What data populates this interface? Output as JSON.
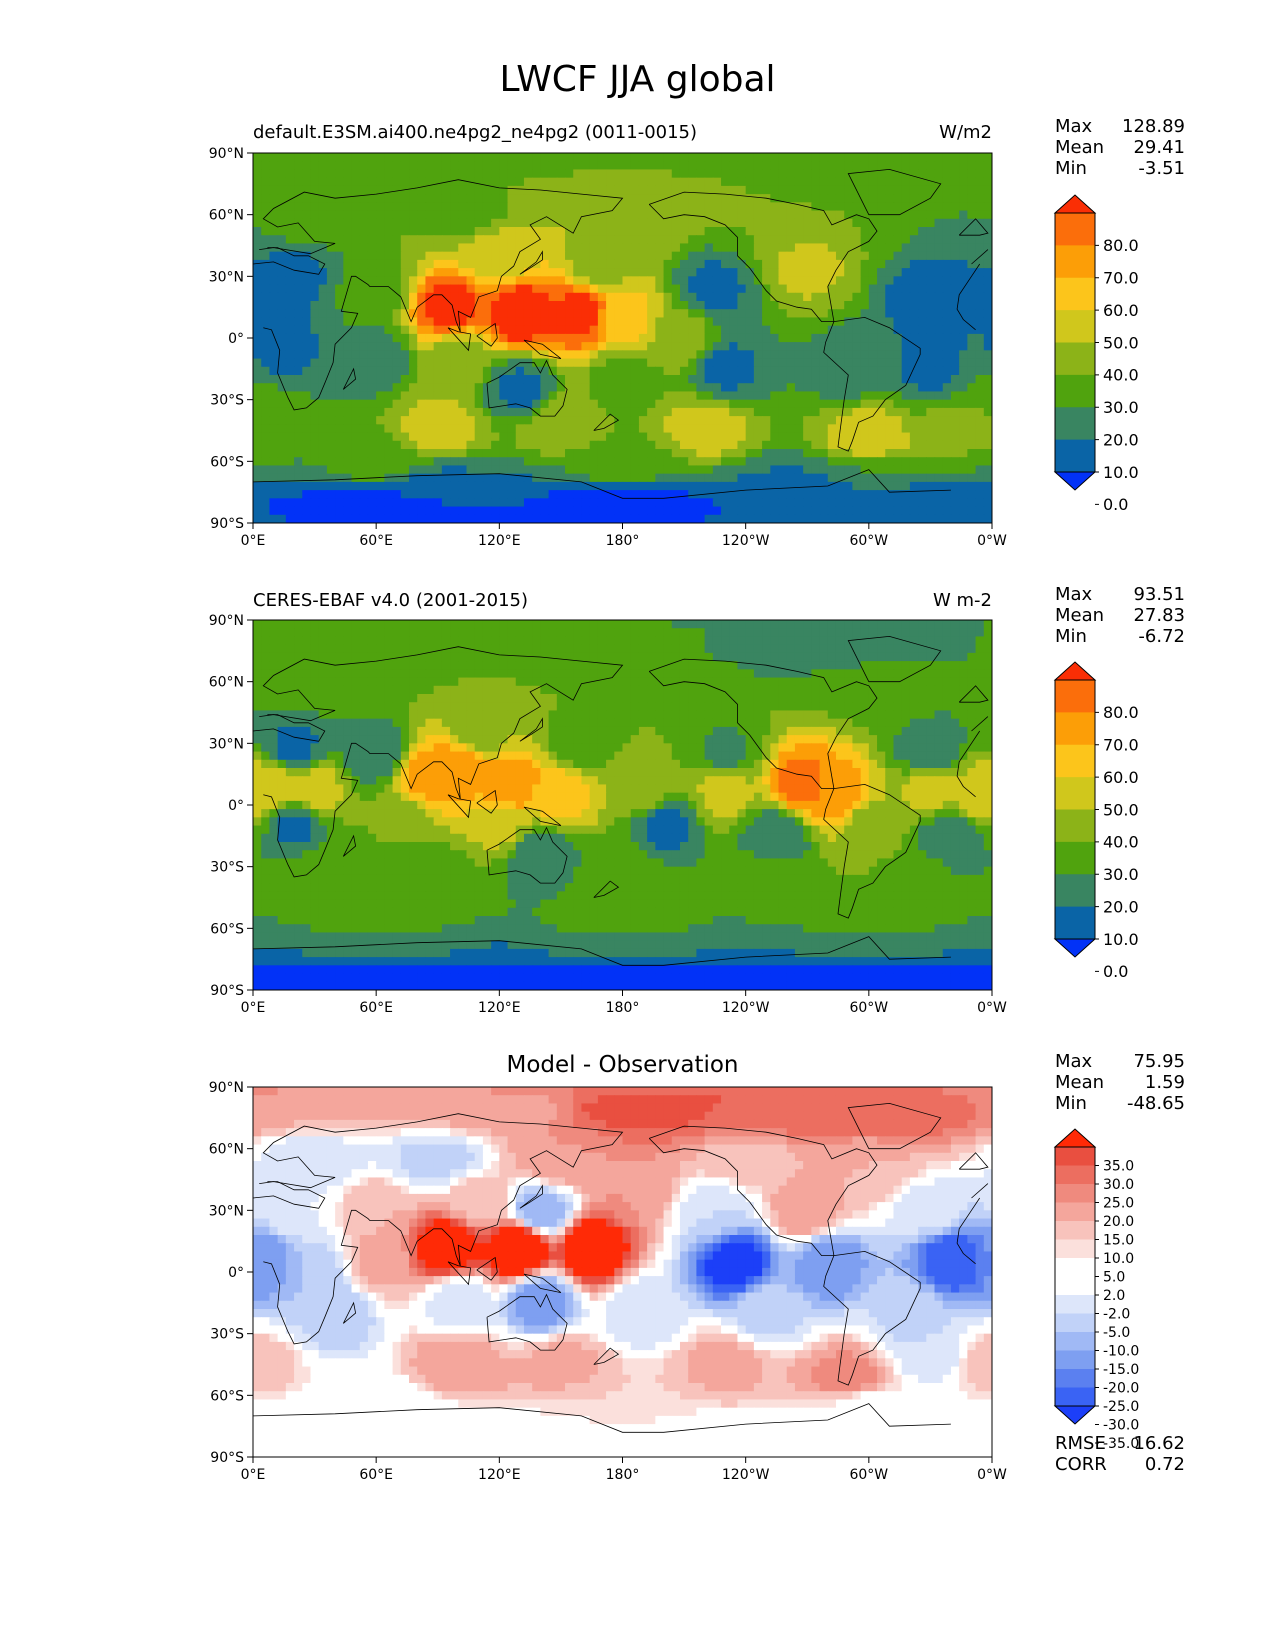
{
  "figure_title": "LWCF JJA global",
  "colors": {
    "abs_levels": [
      "#0232f7",
      "#0a64a6",
      "#398561",
      "#50a30e",
      "#8cb318",
      "#d0c71c",
      "#fcc51b",
      "#fc9e07",
      "#fb6e0b",
      "#fa2e05"
    ],
    "diff_levels": [
      "#1c3ff8",
      "#3a63f4",
      "#5b80f0",
      "#7e9ff1",
      "#a0b9f5",
      "#c1d2f8",
      "#dde6fa",
      "#ffffff",
      "#ffffff",
      "#fbe0dc",
      "#f8c3bc",
      "#f4a69c",
      "#ef8a7e",
      "#ec6e60",
      "#e94f40",
      "#ff2a06"
    ],
    "coast": "#000000"
  },
  "panels": [
    {
      "left_title": "default.E3SM.ai400.ne4pg2_ne4pg2 (0011-0015)",
      "right_title": "W/m2",
      "center_title": "",
      "stats": {
        "max_label": "Max",
        "max": "128.89",
        "mean_label": "Mean",
        "mean": "29.41",
        "min_label": "Min",
        "min": "-3.51"
      },
      "colorbar_ticks": [
        "80.0",
        "70.0",
        "60.0",
        "50.0",
        "40.0",
        "30.0",
        "20.0",
        "10.0",
        "0.0"
      ]
    },
    {
      "left_title": "CERES-EBAF v4.0 (2001-2015)",
      "right_title": "W m-2",
      "center_title": "",
      "stats": {
        "max_label": "Max",
        "max": "93.51",
        "mean_label": "Mean",
        "mean": "27.83",
        "min_label": "Min",
        "min": "-6.72"
      },
      "colorbar_ticks": [
        "80.0",
        "70.0",
        "60.0",
        "50.0",
        "40.0",
        "30.0",
        "20.0",
        "10.0",
        "0.0"
      ]
    },
    {
      "left_title": "",
      "right_title": "",
      "center_title": "Model - Observation",
      "stats": {
        "max_label": "Max",
        "max": "75.95",
        "mean_label": "Mean",
        "mean": "1.59",
        "min_label": "Min",
        "min": "-48.65"
      },
      "colorbar_ticks": [
        "35.0",
        "30.0",
        "25.0",
        "20.0",
        "15.0",
        "10.0",
        "5.0",
        "2.0",
        "-2.0",
        "-5.0",
        "-10.0",
        "-15.0",
        "-20.0",
        "-25.0",
        "-30.0",
        "-35.0"
      ],
      "extra_stats": {
        "rmse_label": "RMSE",
        "rmse": "16.62",
        "corr_label": "CORR",
        "corr": "0.72"
      }
    }
  ],
  "axes": {
    "lat_ticks": [
      "90°N",
      "60°N",
      "30°N",
      "0°",
      "30°S",
      "60°S",
      "90°S"
    ],
    "lon_ticks": [
      "0°E",
      "60°E",
      "120°E",
      "180°",
      "120°W",
      "60°W",
      "0°W"
    ]
  },
  "chart_data": [
    {
      "type": "heatmap",
      "title": "default.E3SM.ai400.ne4pg2_ne4pg2 (0011-0015)",
      "units": "W/m2",
      "x_range": [
        0,
        360
      ],
      "y_range": [
        -90,
        90
      ],
      "levels": [
        0,
        10,
        20,
        30,
        40,
        50,
        60,
        70,
        80
      ],
      "max": 128.89,
      "mean": 29.41,
      "min": -3.51,
      "blobs": [
        {
          "lon": 0,
          "lat": 85,
          "v": 20
        },
        {
          "lon": 30,
          "lat": 60,
          "v": 25
        },
        {
          "lon": 100,
          "lat": 60,
          "v": 28
        },
        {
          "lon": 180,
          "lat": 60,
          "v": 40
        },
        {
          "lon": 250,
          "lat": 60,
          "v": 30
        },
        {
          "lon": 300,
          "lat": 60,
          "v": 30
        },
        {
          "lon": 20,
          "lat": 30,
          "v": 8
        },
        {
          "lon": 60,
          "lat": 25,
          "v": 25
        },
        {
          "lon": 120,
          "lat": 40,
          "v": 45
        },
        {
          "lon": 170,
          "lat": 35,
          "v": 35
        },
        {
          "lon": 225,
          "lat": 25,
          "v": 8
        },
        {
          "lon": 270,
          "lat": 35,
          "v": 42
        },
        {
          "lon": 330,
          "lat": 20,
          "v": 5
        },
        {
          "lon": 340,
          "lat": 40,
          "v": 10
        },
        {
          "lon": 95,
          "lat": 15,
          "v": 85
        },
        {
          "lon": 130,
          "lat": 12,
          "v": 90
        },
        {
          "lon": 160,
          "lat": 12,
          "v": 85
        },
        {
          "lon": 180,
          "lat": 10,
          "v": 55
        },
        {
          "lon": 210,
          "lat": 0,
          "v": 35
        },
        {
          "lon": 15,
          "lat": -5,
          "v": 8
        },
        {
          "lon": 60,
          "lat": -10,
          "v": 15
        },
        {
          "lon": 100,
          "lat": -10,
          "v": 35
        },
        {
          "lon": 130,
          "lat": -25,
          "v": 8
        },
        {
          "lon": 180,
          "lat": -20,
          "v": 25
        },
        {
          "lon": 230,
          "lat": -15,
          "v": 8
        },
        {
          "lon": 290,
          "lat": -15,
          "v": 15
        },
        {
          "lon": 330,
          "lat": -15,
          "v": 8
        },
        {
          "lon": 0,
          "lat": -40,
          "v": 30
        },
        {
          "lon": 90,
          "lat": -45,
          "v": 45
        },
        {
          "lon": 150,
          "lat": -42,
          "v": 38
        },
        {
          "lon": 220,
          "lat": -45,
          "v": 45
        },
        {
          "lon": 300,
          "lat": -50,
          "v": 50
        },
        {
          "lon": 340,
          "lat": -45,
          "v": 32
        },
        {
          "lon": 60,
          "lat": -62,
          "v": 25
        },
        {
          "lon": 180,
          "lat": -62,
          "v": 25
        },
        {
          "lon": 300,
          "lat": -65,
          "v": 20
        },
        {
          "lon": 60,
          "lat": -80,
          "v": -2
        },
        {
          "lon": 180,
          "lat": -80,
          "v": -2
        },
        {
          "lon": 300,
          "lat": -80,
          "v": 2
        },
        {
          "lon": 90,
          "lat": -72,
          "v": 8
        },
        {
          "lon": 270,
          "lat": -72,
          "v": 8
        }
      ]
    },
    {
      "type": "heatmap",
      "title": "CERES-EBAF v4.0 (2001-2015)",
      "units": "W m-2",
      "x_range": [
        0,
        360
      ],
      "y_range": [
        -90,
        90
      ],
      "levels": [
        0,
        10,
        20,
        30,
        40,
        50,
        60,
        70,
        80
      ],
      "max": 93.51,
      "mean": 27.83,
      "min": -6.72,
      "blobs": [
        {
          "lon": 0,
          "lat": 80,
          "v": 20
        },
        {
          "lon": 60,
          "lat": 80,
          "v": 25
        },
        {
          "lon": 180,
          "lat": 80,
          "v": 22
        },
        {
          "lon": 280,
          "lat": 80,
          "v": 12
        },
        {
          "lon": 40,
          "lat": 60,
          "v": 25
        },
        {
          "lon": 120,
          "lat": 60,
          "v": 30
        },
        {
          "lon": 200,
          "lat": 55,
          "v": 30
        },
        {
          "lon": 300,
          "lat": 55,
          "v": 28
        },
        {
          "lon": 20,
          "lat": 28,
          "v": 8
        },
        {
          "lon": 60,
          "lat": 25,
          "v": 12
        },
        {
          "lon": 110,
          "lat": 35,
          "v": 35
        },
        {
          "lon": 160,
          "lat": 30,
          "v": 25
        },
        {
          "lon": 230,
          "lat": 25,
          "v": 18
        },
        {
          "lon": 330,
          "lat": 25,
          "v": 12
        },
        {
          "lon": 10,
          "lat": 8,
          "v": 50
        },
        {
          "lon": 30,
          "lat": 8,
          "v": 45
        },
        {
          "lon": 85,
          "lat": 15,
          "v": 65
        },
        {
          "lon": 100,
          "lat": 18,
          "v": 70
        },
        {
          "lon": 125,
          "lat": 10,
          "v": 70
        },
        {
          "lon": 150,
          "lat": 5,
          "v": 55
        },
        {
          "lon": 190,
          "lat": 8,
          "v": 40
        },
        {
          "lon": 230,
          "lat": 8,
          "v": 45
        },
        {
          "lon": 268,
          "lat": 10,
          "v": 75
        },
        {
          "lon": 285,
          "lat": 5,
          "v": 65
        },
        {
          "lon": 330,
          "lat": 8,
          "v": 45
        },
        {
          "lon": 355,
          "lat": 5,
          "v": 50
        },
        {
          "lon": 20,
          "lat": -10,
          "v": 8
        },
        {
          "lon": 70,
          "lat": -8,
          "v": 30
        },
        {
          "lon": 120,
          "lat": -10,
          "v": 42
        },
        {
          "lon": 140,
          "lat": -25,
          "v": 10
        },
        {
          "lon": 200,
          "lat": -10,
          "v": 8
        },
        {
          "lon": 255,
          "lat": -15,
          "v": 10
        },
        {
          "lon": 300,
          "lat": -10,
          "v": 35
        },
        {
          "lon": 340,
          "lat": -15,
          "v": 10
        },
        {
          "lon": 30,
          "lat": -35,
          "v": 25
        },
        {
          "lon": 90,
          "lat": -35,
          "v": 25
        },
        {
          "lon": 180,
          "lat": -35,
          "v": 28
        },
        {
          "lon": 250,
          "lat": -35,
          "v": 25
        },
        {
          "lon": 320,
          "lat": -35,
          "v": 28
        },
        {
          "lon": 60,
          "lat": -55,
          "v": 30
        },
        {
          "lon": 180,
          "lat": -55,
          "v": 30
        },
        {
          "lon": 300,
          "lat": -55,
          "v": 30
        },
        {
          "lon": 60,
          "lat": -70,
          "v": 18
        },
        {
          "lon": 180,
          "lat": -70,
          "v": 18
        },
        {
          "lon": 300,
          "lat": -70,
          "v": 18
        },
        {
          "lon": 60,
          "lat": -82,
          "v": -3
        },
        {
          "lon": 180,
          "lat": -82,
          "v": -3
        },
        {
          "lon": 300,
          "lat": -82,
          "v": -3
        }
      ]
    },
    {
      "type": "heatmap",
      "title": "Model - Observation",
      "x_range": [
        0,
        360
      ],
      "y_range": [
        -90,
        90
      ],
      "levels": [
        -35,
        -30,
        -25,
        -20,
        -15,
        -10,
        -5,
        -2,
        2,
        5,
        10,
        15,
        20,
        25,
        30,
        35
      ],
      "max": 75.95,
      "mean": 1.59,
      "min": -48.65,
      "rmse": 16.62,
      "corr": 0.72,
      "blobs": [
        {
          "lon": 30,
          "lat": 80,
          "v": 10
        },
        {
          "lon": 120,
          "lat": 80,
          "v": 12
        },
        {
          "lon": 190,
          "lat": 80,
          "v": 28
        },
        {
          "lon": 250,
          "lat": 78,
          "v": 22
        },
        {
          "lon": 320,
          "lat": 80,
          "v": 25
        },
        {
          "lon": 30,
          "lat": 55,
          "v": -10
        },
        {
          "lon": 90,
          "lat": 55,
          "v": -12
        },
        {
          "lon": 150,
          "lat": 55,
          "v": 15
        },
        {
          "lon": 240,
          "lat": 55,
          "v": 8
        },
        {
          "lon": 300,
          "lat": 50,
          "v": 10
        },
        {
          "lon": 20,
          "lat": 30,
          "v": -5
        },
        {
          "lon": 60,
          "lat": 30,
          "v": 10
        },
        {
          "lon": 110,
          "lat": 35,
          "v": 8
        },
        {
          "lon": 140,
          "lat": 30,
          "v": -20
        },
        {
          "lon": 185,
          "lat": 40,
          "v": 15
        },
        {
          "lon": 225,
          "lat": 30,
          "v": -10
        },
        {
          "lon": 270,
          "lat": 30,
          "v": 15
        },
        {
          "lon": 330,
          "lat": 30,
          "v": -8
        },
        {
          "lon": 95,
          "lat": 12,
          "v": 40
        },
        {
          "lon": 130,
          "lat": 12,
          "v": 45
        },
        {
          "lon": 165,
          "lat": 12,
          "v": 40
        },
        {
          "lon": 5,
          "lat": 6,
          "v": -25
        },
        {
          "lon": 30,
          "lat": 0,
          "v": -15
        },
        {
          "lon": 60,
          "lat": 5,
          "v": 12
        },
        {
          "lon": 235,
          "lat": 5,
          "v": -40
        },
        {
          "lon": 280,
          "lat": 5,
          "v": -25
        },
        {
          "lon": 340,
          "lat": 6,
          "v": -35
        },
        {
          "lon": 140,
          "lat": -15,
          "v": -25
        },
        {
          "lon": 100,
          "lat": -15,
          "v": -10
        },
        {
          "lon": 40,
          "lat": -20,
          "v": -15
        },
        {
          "lon": 190,
          "lat": -20,
          "v": -10
        },
        {
          "lon": 250,
          "lat": -20,
          "v": -12
        },
        {
          "lon": 320,
          "lat": -20,
          "v": -12
        },
        {
          "lon": 0,
          "lat": -45,
          "v": 8
        },
        {
          "lon": 100,
          "lat": -45,
          "v": 15
        },
        {
          "lon": 150,
          "lat": -45,
          "v": 12
        },
        {
          "lon": 230,
          "lat": -45,
          "v": 12
        },
        {
          "lon": 290,
          "lat": -52,
          "v": 18
        },
        {
          "lon": 330,
          "lat": -40,
          "v": -10
        },
        {
          "lon": 60,
          "lat": -65,
          "v": -3
        },
        {
          "lon": 180,
          "lat": -65,
          "v": 5
        },
        {
          "lon": 300,
          "lat": -65,
          "v": 0
        },
        {
          "lon": 60,
          "lat": -82,
          "v": -4
        },
        {
          "lon": 180,
          "lat": -82,
          "v": -4
        },
        {
          "lon": 300,
          "lat": -82,
          "v": -4
        }
      ]
    }
  ]
}
